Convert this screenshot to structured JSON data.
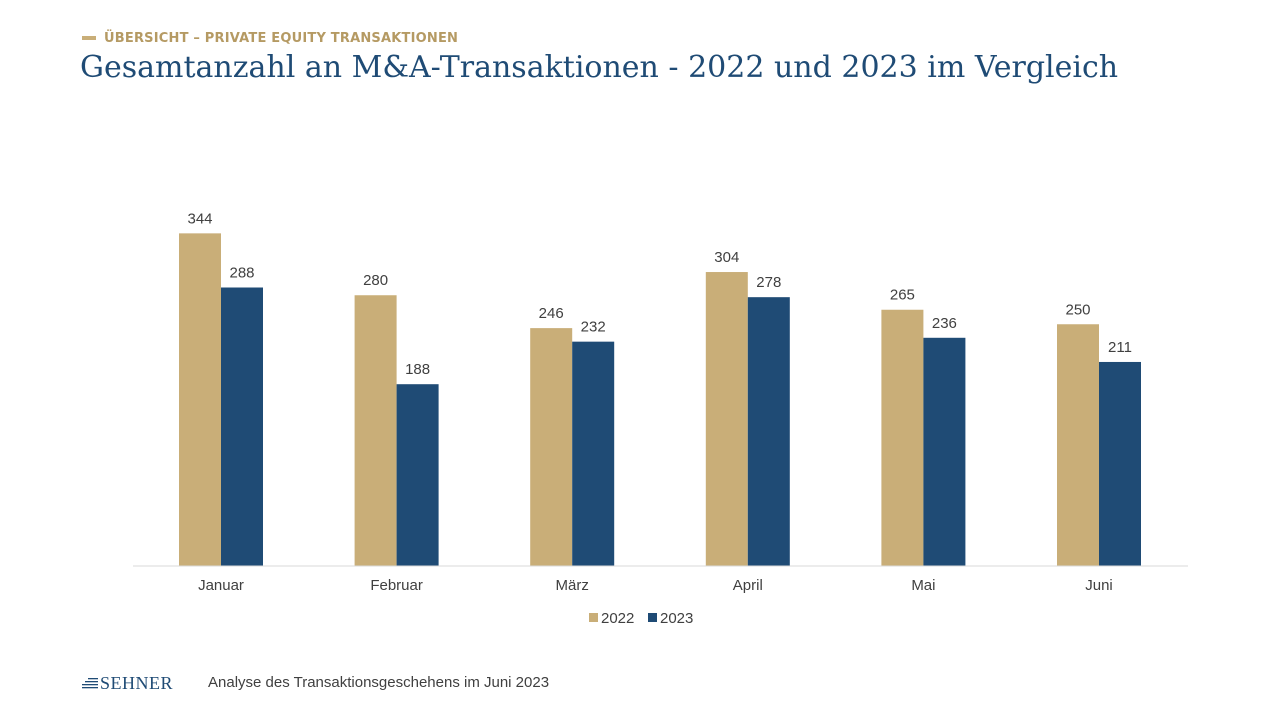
{
  "header": {
    "kicker": "ÜBERSICHT – PRIVATE EQUITY TRANSAKTIONEN",
    "title": "Gesamtanzahl an M&A-Transaktionen - 2022 und 2023 im Vergleich"
  },
  "colors": {
    "gold": "#c9ae78",
    "navy": "#1f4b75",
    "kicker_text": "#b59a63",
    "axis": "#d9d9d9",
    "label_text": "#404040"
  },
  "chart_data": {
    "type": "bar",
    "categories": [
      "Januar",
      "Februar",
      "März",
      "April",
      "Mai",
      "Juni"
    ],
    "series": [
      {
        "name": "2022",
        "values": [
          344,
          280,
          246,
          304,
          265,
          250
        ]
      },
      {
        "name": "2023",
        "values": [
          288,
          188,
          232,
          278,
          236,
          211
        ]
      }
    ],
    "xlabel": "",
    "ylabel": "",
    "ylim": [
      0,
      400
    ],
    "grid": false,
    "legend": "bottom-center",
    "data_labels": true
  },
  "footer": {
    "logo_text": "SEHNER",
    "logo_icon": "stripes-icon",
    "caption": "Analyse des Transaktionsgeschehens im Juni 2023"
  }
}
